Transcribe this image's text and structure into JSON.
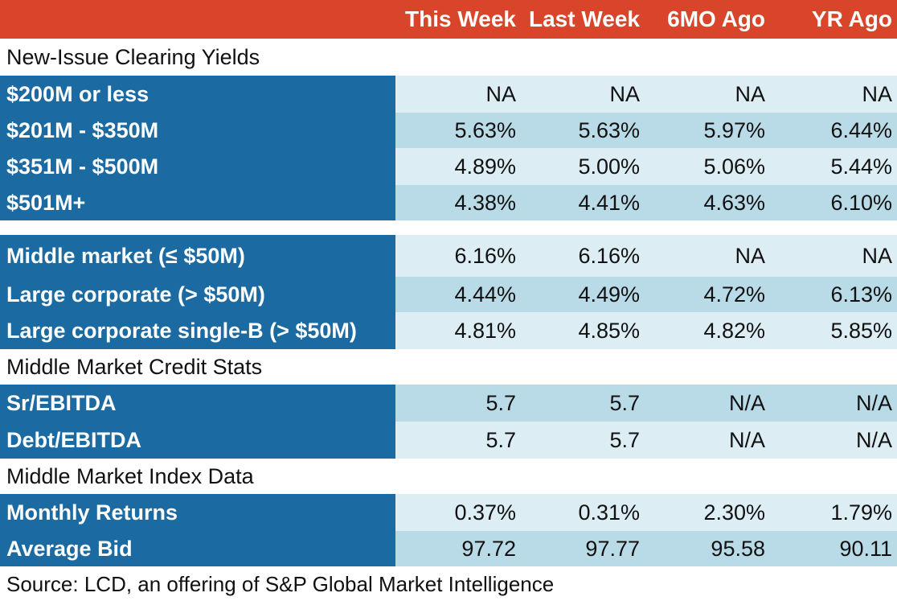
{
  "header": [
    "This Week",
    "Last Week",
    "6MO Ago",
    "YR Ago"
  ],
  "sections": {
    "clearing": "New-Issue Clearing Yields",
    "credit": "Middle Market Credit Stats",
    "index": "Middle Market Index Data"
  },
  "rows": [
    {
      "label": "$200M or less",
      "values": [
        "NA",
        "NA",
        "NA",
        "NA"
      ]
    },
    {
      "label": "$201M - $350M",
      "values": [
        "5.63%",
        "5.63%",
        "5.97%",
        "6.44%"
      ]
    },
    {
      "label": "$351M - $500M",
      "values": [
        "4.89%",
        "5.00%",
        "5.06%",
        "5.44%"
      ]
    },
    {
      "label": "$501M+",
      "values": [
        "4.38%",
        "4.41%",
        "4.63%",
        "6.10%"
      ]
    },
    {
      "label": "Middle market (≤ $50M)",
      "values": [
        "6.16%",
        "6.16%",
        "NA",
        "NA"
      ]
    },
    {
      "label": "Large corporate (> $50M)",
      "values": [
        "4.44%",
        "4.49%",
        "4.72%",
        "6.13%"
      ]
    },
    {
      "label": "Large corporate single-B (> $50M)",
      "values": [
        "4.81%",
        "4.85%",
        "4.82%",
        "5.85%"
      ]
    },
    {
      "label": "Sr/EBITDA",
      "values": [
        "5.7",
        "5.7",
        "N/A",
        "N/A"
      ]
    },
    {
      "label": "Debt/EBITDA",
      "values": [
        "5.7",
        "5.7",
        "N/A",
        "N/A"
      ]
    },
    {
      "label": "Monthly Returns",
      "values": [
        "0.37%",
        "0.31%",
        "2.30%",
        "1.79%"
      ]
    },
    {
      "label": "Average Bid",
      "values": [
        "97.72",
        "97.77",
        "95.58",
        "90.11"
      ]
    }
  ],
  "source": "Source: LCD, an offering of S&P Global Market Intelligence",
  "colors": {
    "header": "#d9452a",
    "label": "#1b6aa2",
    "light": "#dcedf4",
    "dark": "#b9dbe7"
  }
}
